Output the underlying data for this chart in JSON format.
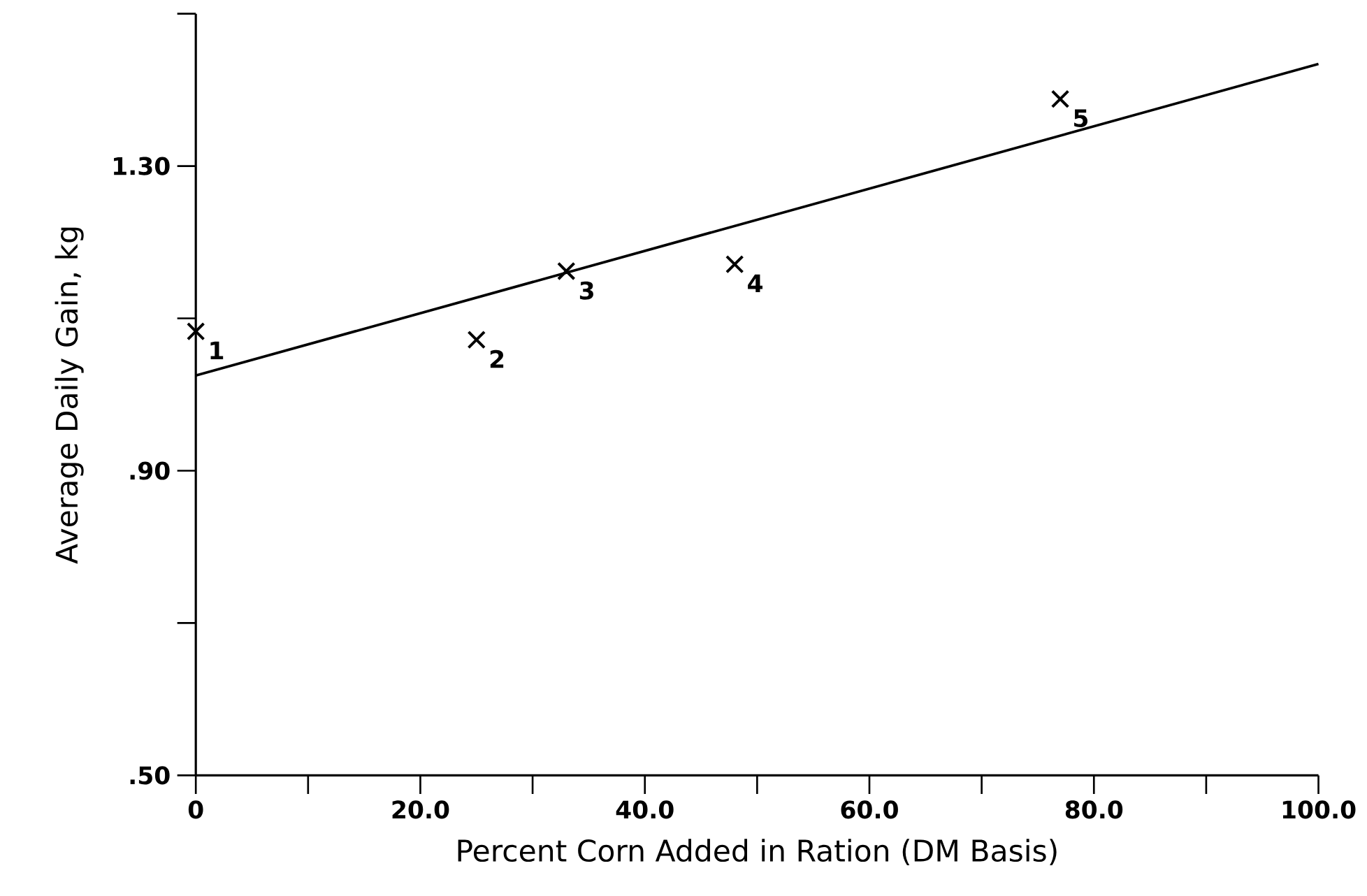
{
  "chart_data": {
    "type": "scatter",
    "xlabel": "Percent Corn Added in Ration (DM Basis)",
    "ylabel": "Average Daily Gain, kg",
    "series": [
      {
        "color": "#000000",
        "marker": "cross",
        "x": [
          0,
          25,
          33,
          48,
          77
        ],
        "values": [
          1.083,
          1.072,
          1.162,
          1.171,
          1.388
        ]
      },
      {
        "type": "line",
        "color": "#000000",
        "marker": "none",
        "line_style": "solid",
        "x": [
          0,
          100
        ],
        "values": [
          1.025,
          1.434
        ]
      }
    ],
    "annotations": [
      {
        "text": "1",
        "x": 0,
        "y": 1.083
      },
      {
        "text": "2",
        "x": 25,
        "y": 1.072
      },
      {
        "text": "3",
        "x": 33,
        "y": 1.162
      },
      {
        "text": "4",
        "x": 48,
        "y": 1.171
      },
      {
        "text": "5",
        "x": 77,
        "y": 1.388
      }
    ],
    "xlim": [
      0,
      100
    ],
    "ylim": [
      0.5,
      1.5
    ],
    "xticks": [
      0,
      {
        "value": 10,
        "label": null
      },
      {
        "value": 20,
        "label": "20.0"
      },
      {
        "value": 30,
        "label": null
      },
      {
        "value": 40,
        "label": "40.0"
      },
      {
        "value": 50,
        "label": null
      },
      {
        "value": 60,
        "label": "60.0"
      },
      {
        "value": 70,
        "label": null
      },
      {
        "value": 80,
        "label": "80.0"
      },
      {
        "value": 90,
        "label": null
      },
      {
        "value": 100,
        "label": "100.0"
      }
    ],
    "yticks": [
      {
        "value": 0.5,
        "label": ".50"
      },
      {
        "value": 0.7,
        "label": null
      },
      {
        "value": 0.9,
        "label": ".90"
      },
      {
        "value": 1.1,
        "label": null
      },
      {
        "value": 1.3,
        "label": "1.30"
      },
      {
        "value": 1.5,
        "label": null
      }
    ],
    "grid": false
  }
}
